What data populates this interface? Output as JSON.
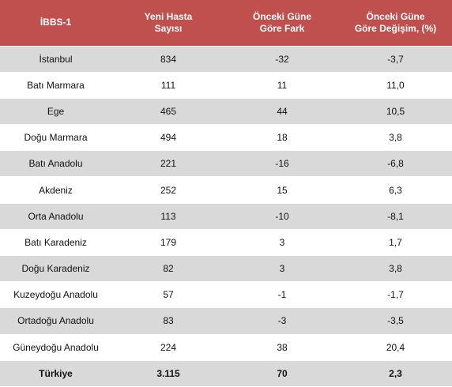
{
  "table": {
    "headers": [
      "İBBS-1",
      "Yeni Hasta\nSayısı",
      "Önceki Güne\nGöre Fark",
      "Önceki Güne\nGöre Değişim, (%)"
    ],
    "rows": [
      [
        "İstanbul",
        "834",
        "-32",
        "-3,7"
      ],
      [
        "Batı Marmara",
        "111",
        "11",
        "11,0"
      ],
      [
        "Ege",
        "465",
        "44",
        "10,5"
      ],
      [
        "Doğu Marmara",
        "494",
        "18",
        "3,8"
      ],
      [
        "Batı Anadolu",
        "221",
        "-16",
        "-6,8"
      ],
      [
        "Akdeniz",
        "252",
        "15",
        "6,3"
      ],
      [
        "Orta Anadolu",
        "113",
        "-10",
        "-8,1"
      ],
      [
        "Batı Karadeniz",
        "179",
        "3",
        "1,7"
      ],
      [
        "Doğu Karadeniz",
        "82",
        "3",
        "3,8"
      ],
      [
        "Kuzeydoğu Anadolu",
        "57",
        "-1",
        "-1,7"
      ],
      [
        "Ortadoğu Anadolu",
        "83",
        "-3",
        "-3,5"
      ],
      [
        "Güneydoğu Anadolu",
        "224",
        "38",
        "20,4"
      ]
    ],
    "total": [
      "Türkiye",
      "3.115",
      "70",
      "2,3"
    ]
  },
  "colors": {
    "header_bg": "#c0504d",
    "header_text": "#ffffff",
    "row_shade": "#d9d9d9",
    "row_plain": "#ffffff"
  }
}
